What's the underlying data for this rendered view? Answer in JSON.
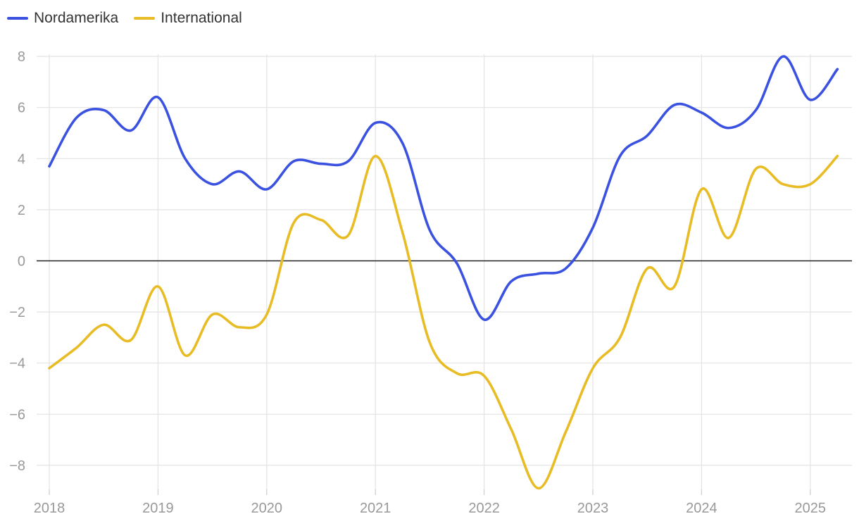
{
  "chart_data": {
    "type": "line",
    "title": "",
    "xlabel": "",
    "ylabel": "",
    "xlim": [
      2018,
      2025.3
    ],
    "ylim": [
      -9,
      8.6
    ],
    "yticks": [
      8,
      6,
      4,
      2,
      0,
      -2,
      -4,
      -6,
      -8
    ],
    "ytick_labels": [
      "8",
      "6",
      "4",
      "2",
      "0",
      "−2",
      "−4",
      "−6",
      "−8"
    ],
    "xticks": [
      2018,
      2019,
      2020,
      2021,
      2022,
      2023,
      2024,
      2025
    ],
    "xtick_labels": [
      "2018",
      "2019",
      "2020",
      "2021",
      "2022",
      "2023",
      "2024",
      "2025"
    ],
    "grid": true,
    "legend_position": "top-left",
    "x": [
      2018,
      2018.25,
      2018.5,
      2018.75,
      2019,
      2019.25,
      2019.5,
      2019.75,
      2020,
      2020.25,
      2020.5,
      2020.75,
      2021,
      2021.25,
      2021.5,
      2021.75,
      2022,
      2022.25,
      2022.5,
      2022.75,
      2023,
      2023.25,
      2023.5,
      2023.75,
      2024,
      2024.25,
      2024.5,
      2024.75,
      2025,
      2025.25
    ],
    "series": [
      {
        "name": "Nordamerika",
        "color": "#3b52e0",
        "values": [
          3.7,
          5.6,
          5.9,
          5.1,
          6.4,
          4.0,
          3.0,
          3.5,
          2.8,
          3.9,
          3.8,
          3.9,
          5.4,
          4.6,
          1.2,
          -0.1,
          -2.3,
          -0.8,
          -0.5,
          -0.3,
          1.3,
          4.1,
          4.9,
          6.1,
          5.8,
          5.2,
          5.9,
          8.0,
          6.3,
          7.5
        ]
      },
      {
        "name": "International",
        "color": "#e8bc25",
        "values": [
          -4.2,
          -3.4,
          -2.5,
          -3.1,
          -1.0,
          -3.7,
          -2.1,
          -2.6,
          -2.1,
          1.5,
          1.6,
          1.0,
          4.1,
          1.1,
          -3.2,
          -4.4,
          -4.5,
          -6.6,
          -8.9,
          -6.7,
          -4.2,
          -3.0,
          -0.3,
          -1.0,
          2.8,
          0.9,
          3.6,
          3.0,
          3.0,
          4.1
        ]
      }
    ]
  }
}
